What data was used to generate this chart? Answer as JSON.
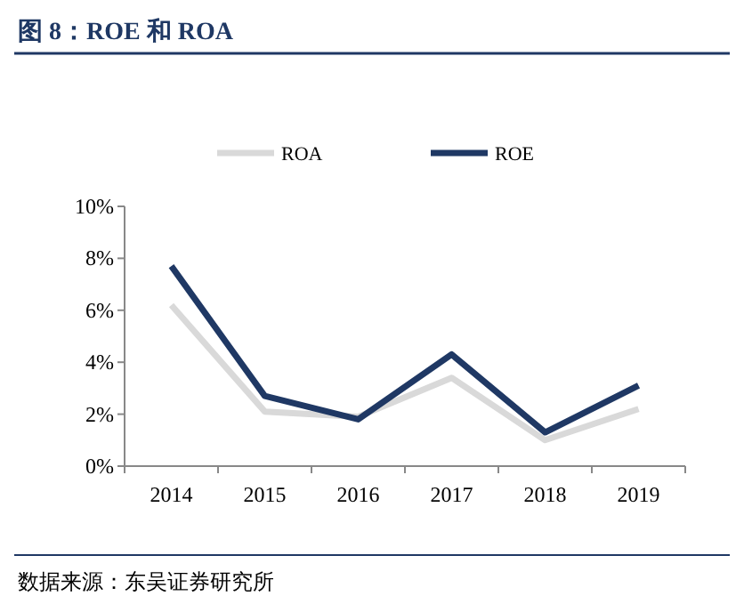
{
  "chart_data": {
    "type": "line",
    "title": "图 8：ROE 和 ROA",
    "categories": [
      "2014",
      "2015",
      "2016",
      "2017",
      "2018",
      "2019"
    ],
    "series": [
      {
        "name": "ROA",
        "color": "#d9d9d9",
        "values": [
          6.2,
          2.1,
          1.9,
          3.4,
          1.0,
          2.2
        ]
      },
      {
        "name": "ROE",
        "color": "#1f3864",
        "values": [
          7.7,
          2.7,
          1.8,
          4.3,
          1.3,
          3.1
        ]
      }
    ],
    "ylim": [
      0,
      10
    ],
    "yticks": [
      {
        "value": 0,
        "label": "0%"
      },
      {
        "value": 2,
        "label": "2%"
      },
      {
        "value": 4,
        "label": "4%"
      },
      {
        "value": 6,
        "label": "6%"
      },
      {
        "value": 8,
        "label": "8%"
      },
      {
        "value": 10,
        "label": "10%"
      }
    ],
    "grid": false,
    "legend": "top",
    "marker": "none",
    "line_style": "solid",
    "annotations": [
      "数据来源：东吴证券研究所"
    ]
  }
}
